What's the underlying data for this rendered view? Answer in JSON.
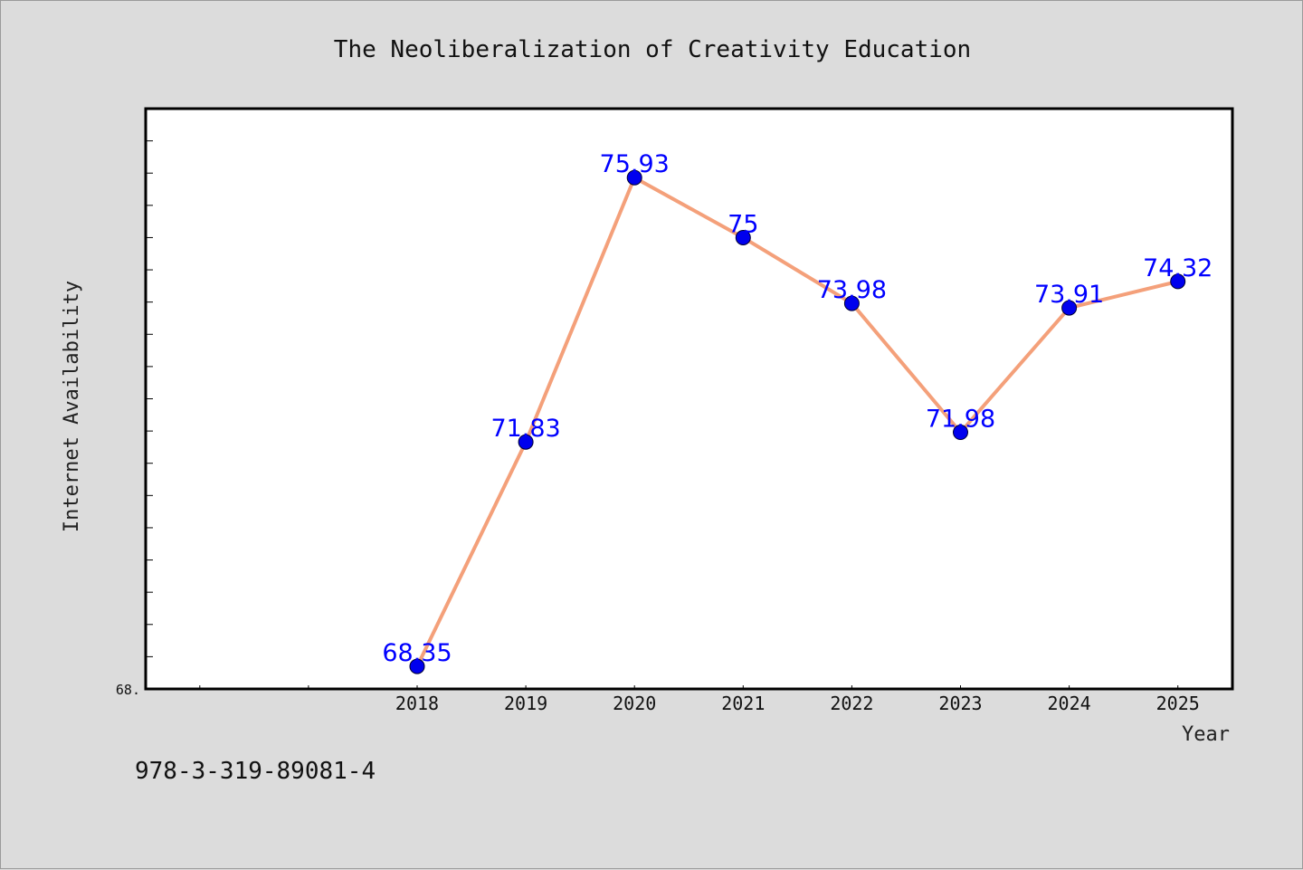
{
  "chart_data": {
    "type": "line",
    "title": "The Neoliberalization of Creativity Education",
    "xlabel": "Year",
    "ylabel": "Internet Availability",
    "categories": [
      "2018",
      "2019",
      "2020",
      "2021",
      "2022",
      "2023",
      "2024",
      "2025"
    ],
    "series": [
      {
        "values": [
          68.35,
          71.83,
          75.93,
          75,
          73.98,
          71.98,
          73.91,
          74.32
        ],
        "labels": [
          "68.35",
          "71.83",
          "75.93",
          "75",
          "73.98",
          "71.98",
          "73.91",
          "74.32"
        ]
      }
    ],
    "ylim": [
      68.0,
      77.0
    ],
    "ytick_label": "68.",
    "grid": false,
    "line_color": "#f4a07a",
    "marker_color": "#0000ee",
    "label_color": "#0000ff"
  },
  "footer_text": "978-3-319-89081-4"
}
